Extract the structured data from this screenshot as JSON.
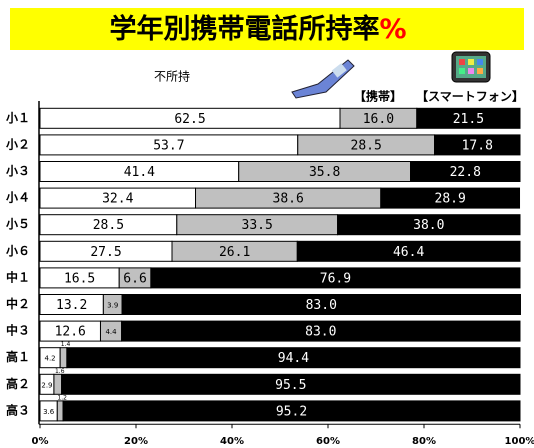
{
  "chart_data": {
    "type": "stacked_barh",
    "title": "学年別携帯電話所持率",
    "title_suffix": "%",
    "categories": [
      "小１",
      "小２",
      "小３",
      "小４",
      "小５",
      "小６",
      "中１",
      "中２",
      "中３",
      "高１",
      "高２",
      "高３"
    ],
    "series": [
      {
        "name": "不所持",
        "color": "#ffffff",
        "values": [
          62.5,
          53.7,
          41.4,
          32.4,
          28.5,
          27.5,
          16.5,
          13.2,
          12.6,
          4.2,
          2.9,
          3.6
        ],
        "value_labels": [
          "62.5",
          "53.7",
          "41.4",
          "32.4",
          "28.5",
          "27.5",
          "16.5",
          "13.2",
          "12.6",
          "4.2",
          "2.9",
          "3.6"
        ]
      },
      {
        "name": "【携帯】",
        "color": "#c0c0c0",
        "values": [
          16.0,
          28.5,
          35.8,
          38.6,
          33.5,
          26.1,
          6.6,
          3.9,
          4.4,
          1.4,
          1.6,
          1.2
        ],
        "value_labels": [
          "16.0",
          "28.5",
          "35.8",
          "38.6",
          "33.5",
          "26.1",
          "6.6",
          "3.9",
          "4.4",
          "1.4",
          "1.6",
          "1.2"
        ]
      },
      {
        "name": "【スマートフォン】",
        "color": "#000000",
        "values": [
          21.5,
          17.8,
          22.8,
          28.9,
          38.0,
          46.4,
          76.9,
          83.0,
          83.0,
          94.4,
          95.5,
          95.2
        ],
        "value_labels": [
          "21.5",
          "17.8",
          "22.8",
          "28.9",
          "38.0",
          "46.4",
          "76.9",
          "83.0",
          "83.0",
          "94.4",
          "95.5",
          "95.2"
        ]
      }
    ],
    "xlim": [
      0,
      100
    ],
    "xticks": [
      {
        "value": 0,
        "label": "0%"
      },
      {
        "value": 20,
        "label": "20%"
      },
      {
        "value": 40,
        "label": "40%"
      },
      {
        "value": 60,
        "label": "60%"
      },
      {
        "value": 80,
        "label": "80%"
      },
      {
        "value": 100,
        "label": "100%"
      }
    ]
  }
}
